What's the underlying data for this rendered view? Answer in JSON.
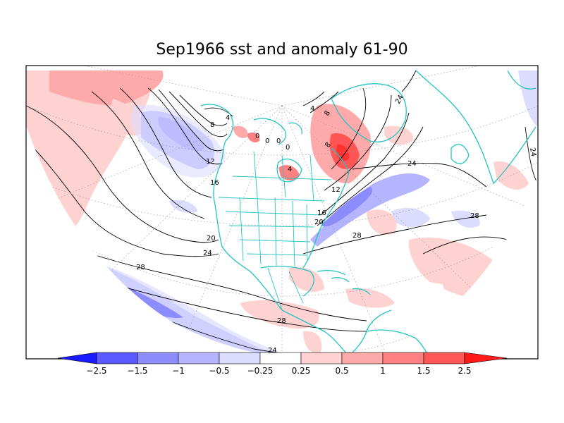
{
  "title": "Sep1966 sst and anomaly 61-90",
  "colors": {
    "coast": "#22c4c4",
    "contour": "#000000",
    "neg_strong": "#1a1aff",
    "neg_2": "#5a5aff",
    "neg_3": "#8c8cff",
    "neg_4": "#b4b4ff",
    "neg_weak": "#dcdcff",
    "pos_weak": "#ffd2d2",
    "pos_2": "#ffaaaa",
    "pos_3": "#ff8080",
    "pos_4": "#ff5555",
    "pos_strong": "#ff1a1a"
  },
  "colorbar": {
    "ticks": [
      "−2.5",
      "−1.5",
      "−1",
      "−0.5",
      "−0.25",
      "0.25",
      "0.5",
      "1",
      "1.5",
      "2.5"
    ]
  },
  "contour_labels": [
    "4",
    "8",
    "12",
    "16",
    "20",
    "24",
    "28",
    "28",
    "28",
    "24",
    "24",
    "24",
    "0",
    "0",
    "0",
    "0",
    "4",
    "8",
    "12",
    "16",
    "20",
    "28",
    "24",
    "4",
    "8"
  ]
}
